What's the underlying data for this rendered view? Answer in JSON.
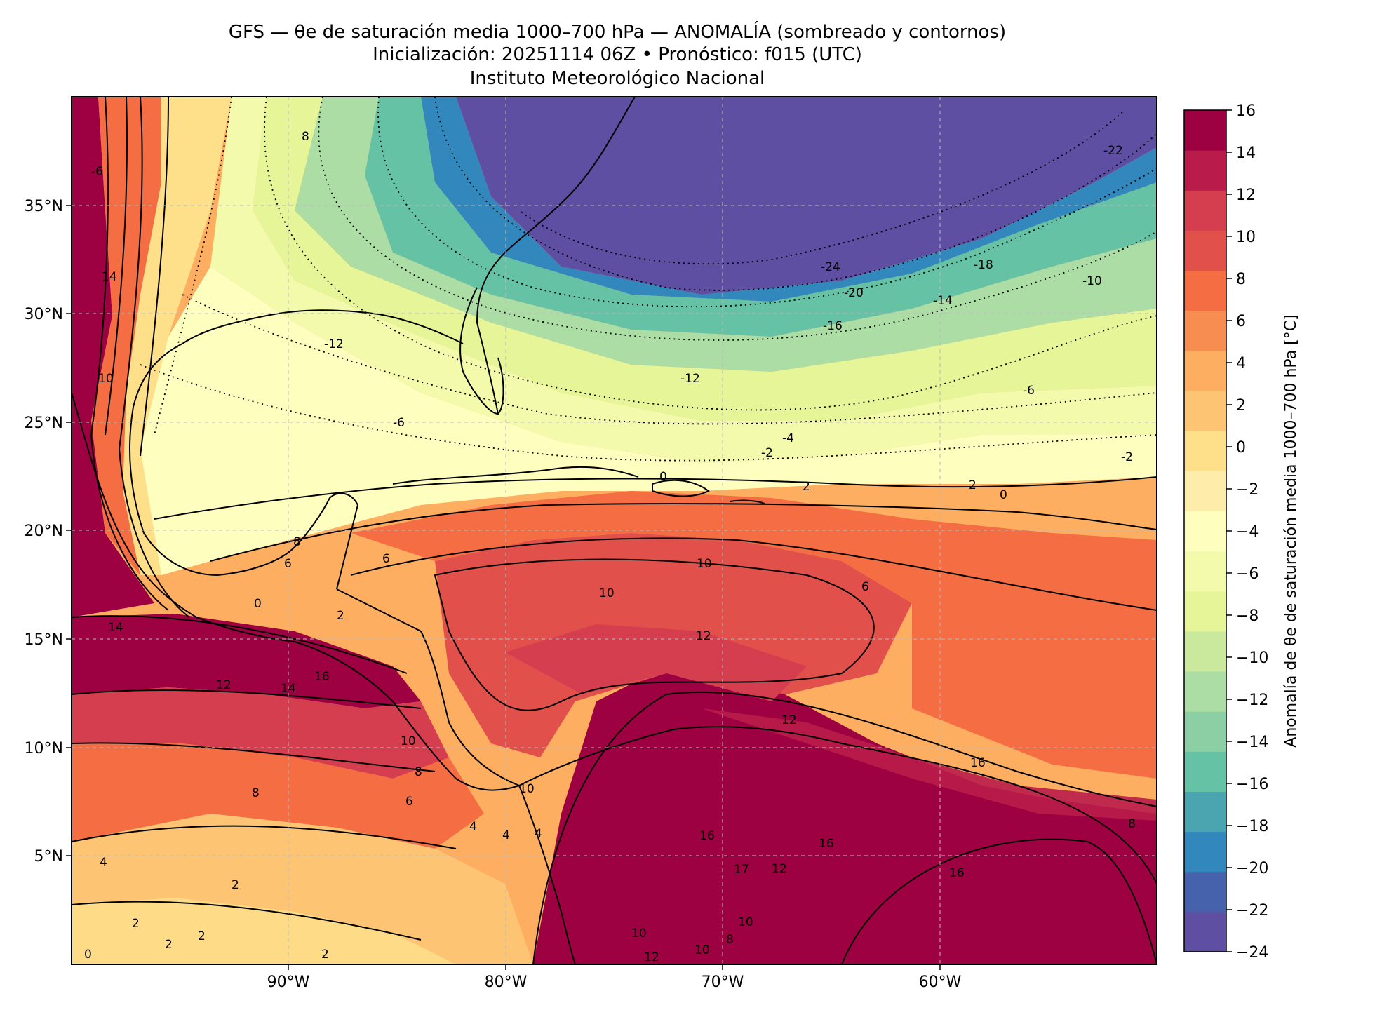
{
  "header": {
    "line1": "GFS — θe de saturación media 1000–700 hPa — ANOMALÍA (sombreado y contornos)",
    "line2": "Inicialización: 20251114 06Z   •   Pronóstico: f015 (UTC)",
    "line3": "Instituto Meteorológico Nacional"
  },
  "map": {
    "lon_range": [
      -100,
      -50
    ],
    "lat_range": [
      0,
      40
    ],
    "lon_ticks": [
      "90°W",
      "80°W",
      "70°W",
      "60°W"
    ],
    "lat_ticks": [
      "5°N",
      "10°N",
      "15°N",
      "20°N",
      "25°N",
      "30°N",
      "35°N"
    ],
    "gridlines": "dashed"
  },
  "colorbar": {
    "label": "Anomalía de θe de saturación media 1000–700 hPa [°C]",
    "levels": [
      -24,
      -22,
      -20,
      -18,
      -16,
      -14,
      -12,
      -10,
      -8,
      -6,
      -4,
      -2,
      0,
      2,
      4,
      6,
      8,
      10,
      12,
      14,
      16
    ],
    "tick_labels": [
      "−24",
      "−22",
      "−20",
      "−18",
      "−16",
      "−14",
      "−12",
      "−10",
      "−8",
      "−6",
      "−4",
      "−2",
      "0",
      "2",
      "4",
      "6",
      "8",
      "10",
      "12",
      "14",
      "16"
    ],
    "colors": [
      "#5e4fa2",
      "#4662ad",
      "#3288bd",
      "#4ba5b1",
      "#66c2a5",
      "#8ccfa4",
      "#abdda4",
      "#cbe99d",
      "#e6f598",
      "#f3faac",
      "#fefebf",
      "#feedaa",
      "#fee08b",
      "#fdc473",
      "#fdae61",
      "#f88d52",
      "#f46d43",
      "#e1504a",
      "#d53e4f",
      "#b91c4a",
      "#9e0142"
    ]
  },
  "contour_labels": [
    "8",
    "-6",
    "14",
    "10",
    "-12",
    "-6",
    "-24",
    "-20",
    "-18",
    "-10",
    "-14",
    "-16",
    "-12",
    "-6",
    "-4",
    "-2",
    "0",
    "2",
    "2",
    "0",
    "-2",
    "-22",
    "6",
    "8",
    "6",
    "2",
    "0",
    "10",
    "12",
    "6",
    "10",
    "14",
    "12",
    "14",
    "16",
    "12",
    "10",
    "8",
    "8",
    "6",
    "10",
    "16",
    "4",
    "4",
    "4",
    "4",
    "2",
    "2",
    "2",
    "0",
    "2",
    "2",
    "10",
    "10",
    "16",
    "17",
    "16",
    "8",
    "8",
    "12",
    "10",
    "16",
    "12"
  ]
}
